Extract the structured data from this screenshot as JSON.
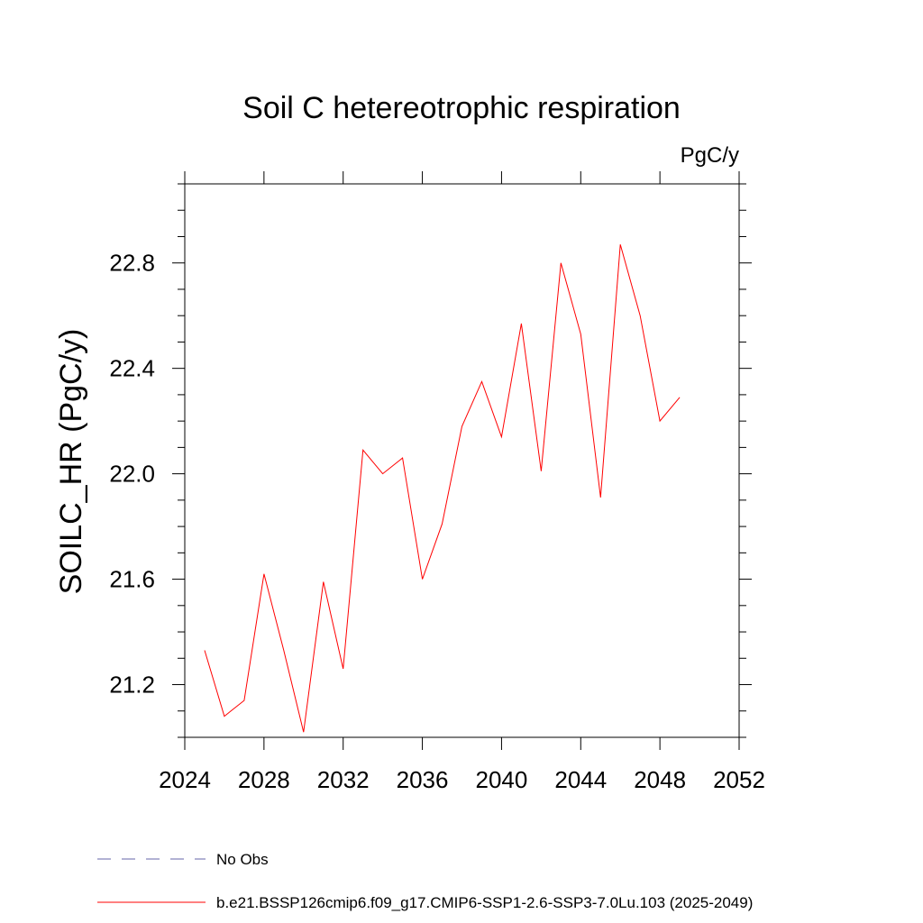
{
  "chart_data": {
    "type": "line",
    "title": "Soil C hetereotrophic respiration",
    "units_label": "PgC/y",
    "ylabel": "SOILC_HR  (PgC/y)",
    "xlabel": "",
    "xlim": [
      2024,
      2052
    ],
    "ylim": [
      21.0,
      23.1
    ],
    "x_ticks": [
      2024,
      2028,
      2032,
      2036,
      2040,
      2044,
      2048,
      2052
    ],
    "x_tick_labels": [
      "2024",
      "2028",
      "2032",
      "2036",
      "2040",
      "2044",
      "2048",
      "2052"
    ],
    "y_ticks": [
      21.2,
      21.6,
      22.0,
      22.4,
      22.8
    ],
    "y_tick_labels": [
      "21.2",
      "21.6",
      "22.0",
      "22.4",
      "22.8"
    ],
    "grid": false,
    "legend_position": "bottom",
    "series": [
      {
        "name": "b.e21.BSSP126cmip6.f09_g17.CMIP6-SSP1-2.6-SSP3-7.0Lu.103 (2025-2049)",
        "color": "#ff0000",
        "style": "solid",
        "x": [
          2025,
          2026,
          2027,
          2028,
          2029,
          2030,
          2031,
          2032,
          2033,
          2034,
          2035,
          2036,
          2037,
          2038,
          2039,
          2040,
          2041,
          2042,
          2043,
          2044,
          2045,
          2046,
          2047,
          2048,
          2049
        ],
        "y": [
          21.33,
          21.08,
          21.14,
          21.62,
          21.33,
          21.02,
          21.59,
          21.26,
          22.09,
          22.0,
          22.06,
          21.6,
          21.81,
          22.18,
          22.35,
          22.14,
          22.57,
          22.01,
          22.8,
          22.53,
          21.91,
          22.87,
          22.6,
          22.2,
          22.29
        ]
      }
    ],
    "legend": [
      {
        "label": "No Obs",
        "color": "#6666aa",
        "style": "dashed"
      },
      {
        "label": "b.e21.BSSP126cmip6.f09_g17.CMIP6-SSP1-2.6-SSP3-7.0Lu.103 (2025-2049)",
        "color": "#ff0000",
        "style": "solid"
      }
    ]
  }
}
